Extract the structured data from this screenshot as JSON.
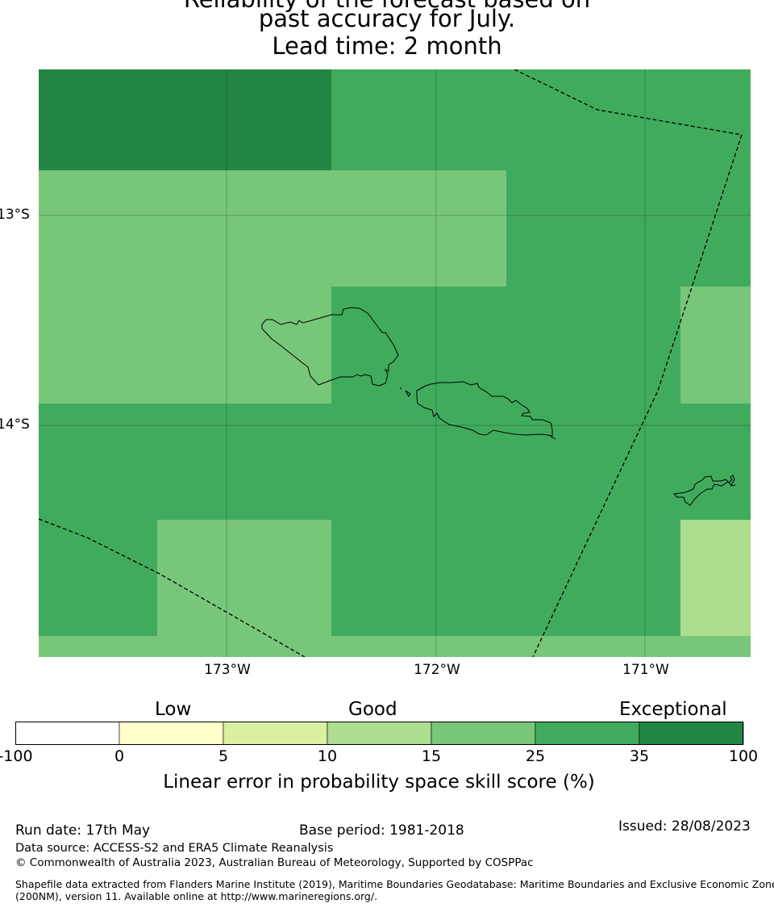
{
  "header": {
    "title_line1": "Reliability of the forecast based on",
    "title_line2": "past accuracy for July.",
    "title_line3": "Lead time: 2 month"
  },
  "map": {
    "lat_labels": [
      "13°S",
      "14°S"
    ],
    "lon_labels": [
      "173°W",
      "172°W",
      "171°W"
    ],
    "cell_colors": {
      "tier_35_100": "#238645",
      "tier_25_35": "#41ab5d",
      "tier_15_25": "#78c679",
      "tier_10_15": "#addd8e"
    },
    "boundary_style": "dashed",
    "islands": [
      "Savai'i",
      "Upolu",
      "Tutuila"
    ]
  },
  "colorbar": {
    "categories": [
      "Low",
      "Good",
      "Exceptional"
    ],
    "ticks": [
      "-100",
      "0",
      "5",
      "10",
      "15",
      "25",
      "35",
      "100"
    ],
    "colors": [
      "#ffffff",
      "#ffffcc",
      "#d9f0a3",
      "#addd8e",
      "#78c679",
      "#41ab5d",
      "#238645"
    ],
    "label": "Linear error in probability space skill score (%)"
  },
  "footer": {
    "run_date": "Run date: 17th May",
    "base_period": "Base period: 1981-2018",
    "issued": "Issued: 28/08/2023",
    "data_source": "Data source: ACCESS-S2 and ERA5 Climate Reanalysis",
    "copyright": "© Commonwealth of Australia 2023, Australian Bureau of Meteorology, Supported by COSPPac",
    "shapefile_line1": "Shapefile data extracted from Flanders Marine Institute (2019), Maritime Boundaries Geodatabase: Maritime Boundaries and Exclusive Economic Zones",
    "shapefile_line2": "(200NM), version 11. Available online at http://www.marineregions.org/."
  }
}
